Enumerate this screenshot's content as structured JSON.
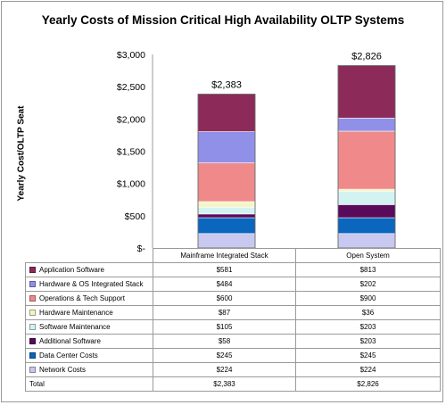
{
  "chart_data": {
    "type": "bar",
    "stacked": true,
    "title": "Yearly Costs of Mission Critical High Availability OLTP Systems",
    "ylabel": "Yearly Cost/OLTP Seat",
    "xlabel": "",
    "ylim": [
      0,
      3000
    ],
    "yticks": [
      "$-",
      "$500",
      "$1,000",
      "$1,500",
      "$2,000",
      "$2,500",
      "$3,000"
    ],
    "ytick_values": [
      0,
      500,
      1000,
      1500,
      2000,
      2500,
      3000
    ],
    "categories": [
      "Mainframe Integrated Stack",
      "Open System"
    ],
    "totals": [
      2383,
      2826
    ],
    "total_labels": [
      "$2,383",
      "$2,826"
    ],
    "series": [
      {
        "name": "Network Costs",
        "color": "#c8c8f0",
        "values": [
          224,
          224
        ],
        "labels": [
          "$224",
          "$224"
        ]
      },
      {
        "name": "Data Center Costs",
        "color": "#0b66bd",
        "values": [
          245,
          245
        ],
        "labels": [
          "$245",
          "$245"
        ]
      },
      {
        "name": "Additional Software",
        "color": "#5a0a5a",
        "values": [
          58,
          203
        ],
        "labels": [
          "$58",
          "$203"
        ]
      },
      {
        "name": "Software Maintenance",
        "color": "#d3f3f3",
        "values": [
          105,
          203
        ],
        "labels": [
          "$105",
          "$203"
        ]
      },
      {
        "name": "Hardware Maintenance",
        "color": "#f5f5c8",
        "values": [
          87,
          36
        ],
        "labels": [
          "$87",
          "$36"
        ]
      },
      {
        "name": "Operations & Tech Support",
        "color": "#f08a8a",
        "values": [
          600,
          900
        ],
        "labels": [
          "$600",
          "$900"
        ]
      },
      {
        "name": "Hardware & OS Integrated Stack",
        "color": "#9090e8",
        "values": [
          484,
          202
        ],
        "labels": [
          "$484",
          "$202"
        ]
      },
      {
        "name": "Application Software",
        "color": "#8c2a5a",
        "values": [
          581,
          813
        ],
        "labels": [
          "$581",
          "$813"
        ]
      }
    ],
    "total_row_label": "Total",
    "grid": false,
    "legend": "table-below"
  }
}
